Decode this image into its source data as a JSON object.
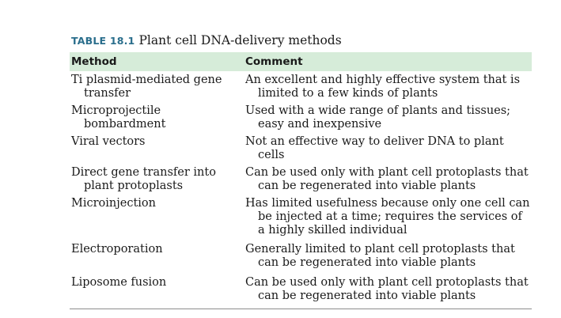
{
  "caption": {
    "tag": "TABLE 18.1",
    "title": "Plant cell DNA-delivery methods"
  },
  "table": {
    "headers": [
      "Method",
      "Comment"
    ],
    "rows": [
      {
        "method": "Ti plasmid-mediated gene transfer",
        "comment": "An excellent and highly effective system that is limited to a few kinds of plants"
      },
      {
        "method": "Microprojectile bombardment",
        "comment": "Used with a wide range of plants and tissues; easy and inexpensive"
      },
      {
        "method": "Viral vectors",
        "comment": "Not an effective way to deliver DNA to plant cells"
      },
      {
        "method": "Direct gene transfer into plant protoplasts",
        "comment": "Can be used only with plant cell protoplasts that can be regenerated into viable plants"
      },
      {
        "method": "Microinjection",
        "comment": "Has limited usefulness because only one cell can be injected at a time; requires the services of a highly skilled individual"
      },
      {
        "method": "Electroporation",
        "comment": "Generally limited to plant cell protoplasts that can be regenerated into viable plants"
      },
      {
        "method": "Liposome fusion",
        "comment": "Can be used only with plant cell protoplasts that can be regenerated into viable plants"
      }
    ]
  }
}
